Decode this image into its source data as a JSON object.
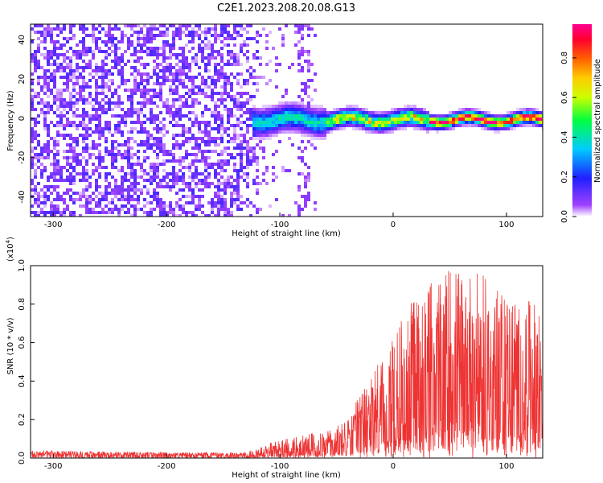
{
  "title": "C2E1.2023.208.20.08.G13",
  "chart_data": [
    {
      "type": "heatmap",
      "xlabel": "Height of straight line (km)",
      "ylabel": "Frequency (Hz)",
      "xlim": [
        -320,
        132
      ],
      "ylim": [
        -50,
        48
      ],
      "xticks": [
        -300,
        -200,
        -100,
        0,
        100
      ],
      "yticks": [
        -40,
        -20,
        0,
        20,
        40
      ],
      "colorbar": {
        "label": "Normalized spectral amplitude",
        "range": [
          0,
          0.97
        ],
        "ticks": [
          0.0,
          0.2,
          0.4,
          0.6,
          0.8
        ],
        "colors": [
          "#ffffff",
          "#8000ff",
          "#0000ff",
          "#00ffff",
          "#00ff00",
          "#ffff00",
          "#ff8000",
          "#ff0000",
          "#ff0080"
        ]
      },
      "description_values": {
        "noise_region_x": [
          -320,
          -120
        ],
        "noise_amplitude": 0.3,
        "signal_start_x": -120,
        "signal_center_freq": 0,
        "signal_peak_amplitude": 0.9
      }
    },
    {
      "type": "line",
      "xlabel": "Height of straight line (km)",
      "ylabel": "SNR (10 * v/v)",
      "yscale_label": "(x10",
      "yscale_exp": "4",
      "y_multiplier": 10000,
      "xlim": [
        -320,
        132
      ],
      "ylim": [
        0,
        1.0
      ],
      "xticks": [
        -300,
        -200,
        -100,
        0,
        100
      ],
      "yticks": [
        0.0,
        0.2,
        0.4,
        0.6,
        0.8,
        1.0
      ],
      "series": [
        {
          "color": "#ee3333",
          "envelope": [
            {
              "x": -320,
              "y": 0.04
            },
            {
              "x": -200,
              "y": 0.03
            },
            {
              "x": -130,
              "y": 0.03
            },
            {
              "x": -110,
              "y": 0.08
            },
            {
              "x": -80,
              "y": 0.12
            },
            {
              "x": -60,
              "y": 0.14
            },
            {
              "x": -40,
              "y": 0.2
            },
            {
              "x": -20,
              "y": 0.45
            },
            {
              "x": 0,
              "y": 0.65
            },
            {
              "x": 20,
              "y": 0.85
            },
            {
              "x": 50,
              "y": 1.0
            },
            {
              "x": 80,
              "y": 0.95
            },
            {
              "x": 100,
              "y": 0.85
            },
            {
              "x": 130,
              "y": 0.8
            }
          ]
        }
      ]
    }
  ],
  "tick_labels": {
    "x": [
      "-300",
      "-200",
      "-100",
      "0",
      "100"
    ],
    "y_top": [
      "-40",
      "-20",
      "0",
      "20",
      "40"
    ],
    "y_bottom": [
      "0.0",
      "0.2",
      "0.4",
      "0.6",
      "0.8",
      "1.0"
    ],
    "cbar": [
      "0.0",
      "0.2",
      "0.4",
      "0.6",
      "0.8"
    ]
  }
}
